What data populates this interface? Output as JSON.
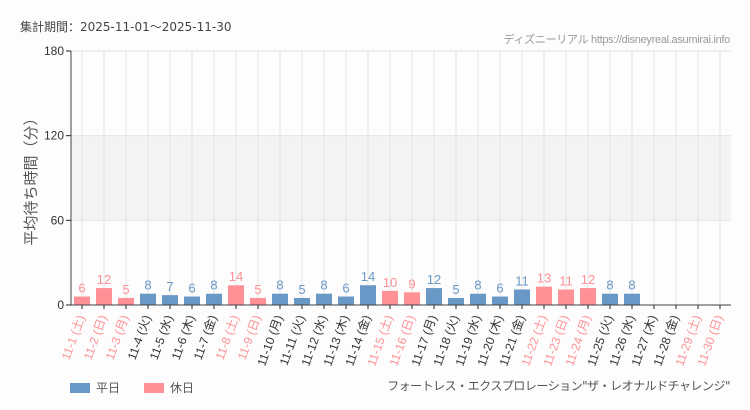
{
  "header": {
    "period": "集計期間：2025-11-01〜2025-11-30",
    "credit": "ディズニーリアル https://disneyreal.asumirai.info"
  },
  "legend": {
    "weekday": {
      "label": "平日",
      "color": "#6a98c6"
    },
    "holiday": {
      "label": "休日",
      "color": "#ff9196"
    }
  },
  "attraction": "フォートレス・エクスプロレーション\"ザ・レオナルドチャレンジ\"",
  "chart_data": {
    "type": "bar",
    "title": "",
    "xlabel": "",
    "ylabel": "平均待ち時間（分）",
    "ylim": [
      0,
      180
    ],
    "yticks": [
      0,
      60,
      120,
      180
    ],
    "shaded_band": [
      60,
      120
    ],
    "grid": true,
    "legend_position": "bottom-left",
    "categories": [
      "11-1 (土)",
      "11-2 (日)",
      "11-3 (月)",
      "11-4 (火)",
      "11-5 (水)",
      "11-6 (木)",
      "11-7 (金)",
      "11-8 (土)",
      "11-9 (日)",
      "11-10 (月)",
      "11-11 (火)",
      "11-12 (水)",
      "11-13 (木)",
      "11-14 (金)",
      "11-15 (土)",
      "11-16 (日)",
      "11-17 (月)",
      "11-18 (火)",
      "11-19 (水)",
      "11-20 (木)",
      "11-21 (金)",
      "11-22 (土)",
      "11-23 (日)",
      "11-24 (月)",
      "11-25 (火)",
      "11-26 (水)",
      "11-27 (木)",
      "11-28 (金)",
      "11-29 (土)",
      "11-30 (日)"
    ],
    "values": [
      6,
      12,
      5,
      8,
      7,
      6,
      8,
      14,
      5,
      8,
      5,
      8,
      6,
      14,
      10,
      9,
      12,
      5,
      8,
      6,
      11,
      13,
      11,
      12,
      8,
      8,
      null,
      null,
      null,
      null
    ],
    "day_type": [
      "holiday",
      "holiday",
      "holiday",
      "weekday",
      "weekday",
      "weekday",
      "weekday",
      "holiday",
      "holiday",
      "weekday",
      "weekday",
      "weekday",
      "weekday",
      "weekday",
      "holiday",
      "holiday",
      "weekday",
      "weekday",
      "weekday",
      "weekday",
      "weekday",
      "holiday",
      "holiday",
      "holiday",
      "weekday",
      "weekday",
      "weekday",
      "weekday",
      "holiday",
      "holiday"
    ],
    "series": [
      {
        "name": "平日",
        "color": "#6a98c6"
      },
      {
        "name": "休日",
        "color": "#ff9196"
      }
    ]
  }
}
